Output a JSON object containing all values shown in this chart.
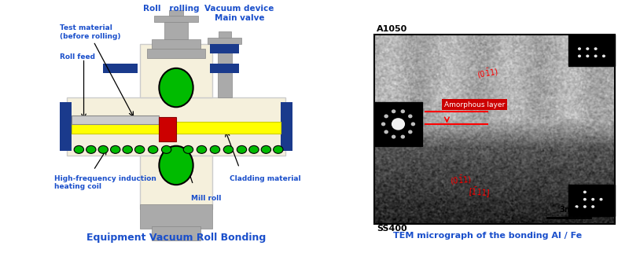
{
  "title_left": "Equipment Vacuum Roll Bonding",
  "title_right": "TEM micrograph of the bonding Al / Fe",
  "title_color": "#1a4fcb",
  "title_right_color": "#1a4fcb",
  "bg_color": "#ffffff",
  "labels": {
    "vacuum_device": "Vacuum device\nMain valve",
    "roll_rolling": "Roll   rolling",
    "test_material": "Test material\n(before rolling)",
    "roll_feed": "Roll feed",
    "hf_induction": "High-frequency induction\nheating coil",
    "cladding": "Cladding material",
    "mill_roll": "Mill roll",
    "A1050": "A1050",
    "SS400": "SS400",
    "amorphous": "Amorphous layer",
    "scale": "3nm"
  },
  "label_color": "#1a4fcb",
  "colors": {
    "wall_bg": "#f5f0dc",
    "wall_border": "#cccccc",
    "roll_gray": "#aaaaaa",
    "roll_dark": "#888888",
    "blue_part": "#1a3a8c",
    "green_circle": "#00bb00",
    "yellow_bar": "#ffff00",
    "red_box": "#cc0000",
    "silver_bar": "#cccccc",
    "dark_gray": "#666666",
    "black": "#000000",
    "red_annotation": "#cc0000"
  }
}
